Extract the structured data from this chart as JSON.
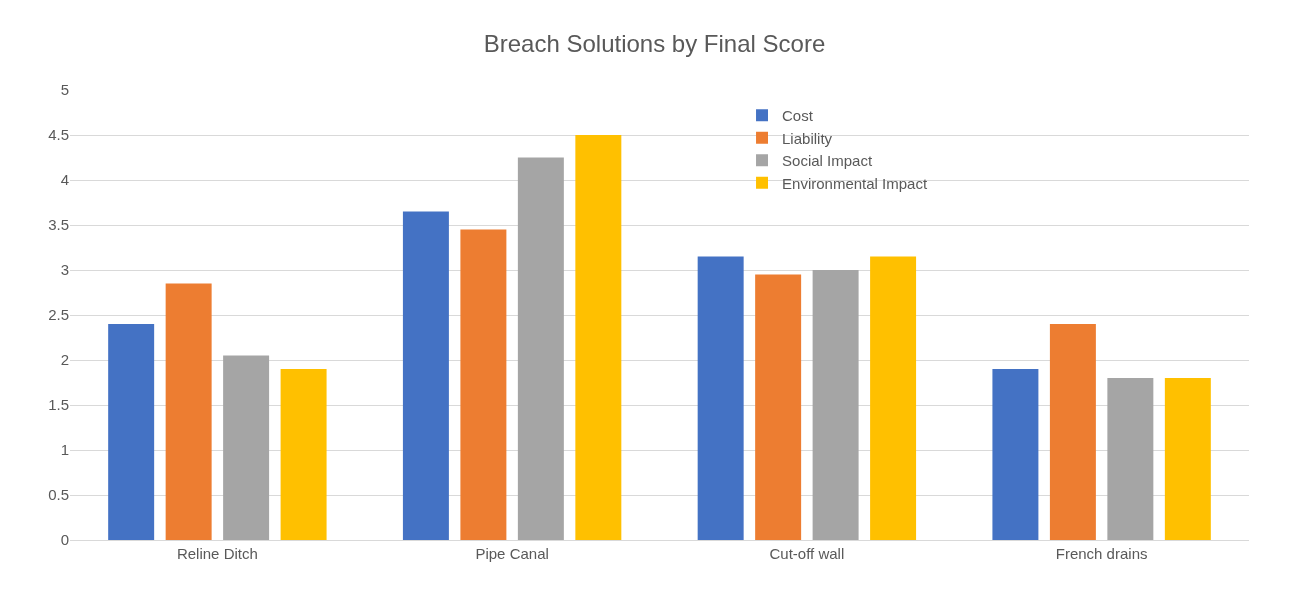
{
  "chart_data": {
    "type": "bar",
    "title": "Breach Solutions by Final Score",
    "categories": [
      "Reline Ditch",
      "Pipe Canal",
      "Cut-off wall",
      "French drains"
    ],
    "series": [
      {
        "name": "Cost",
        "color": "#4472c4",
        "values": [
          2.4,
          3.65,
          3.15,
          1.9
        ]
      },
      {
        "name": "Liability",
        "color": "#ed7d31",
        "values": [
          2.85,
          3.45,
          2.95,
          2.4
        ]
      },
      {
        "name": "Social Impact",
        "color": "#a5a5a5",
        "values": [
          2.05,
          4.25,
          3.0,
          1.8
        ]
      },
      {
        "name": "Environmental Impact",
        "color": "#ffc000",
        "values": [
          1.9,
          4.5,
          3.15,
          1.8
        ]
      }
    ],
    "ylim": [
      0,
      5
    ],
    "yticks": [
      0,
      0.5,
      1,
      1.5,
      2,
      2.5,
      3,
      3.5,
      4,
      4.5,
      5
    ],
    "grid": "y",
    "legend": "top right"
  }
}
